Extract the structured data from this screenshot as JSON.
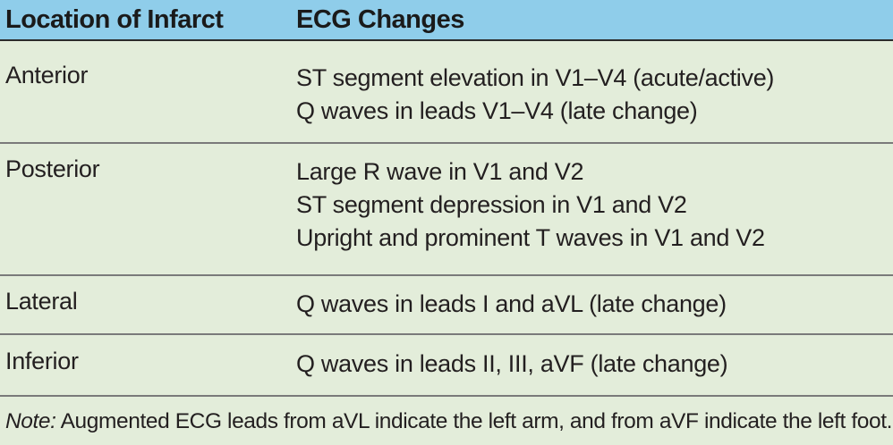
{
  "table": {
    "headers": [
      "Location of Infarct",
      "ECG Changes"
    ],
    "rows": [
      {
        "location": "Anterior",
        "changes": [
          "ST segment elevation in V1–V4 (acute/active)",
          "Q waves in leads V1–V4 (late change)"
        ]
      },
      {
        "location": "Posterior",
        "changes": [
          "Large R wave in V1 and V2",
          "ST segment depression in V1 and V2",
          "Upright and prominent T waves in V1 and V2"
        ]
      },
      {
        "location": "Lateral",
        "changes": [
          "Q waves in leads I and aVL (late change)"
        ]
      },
      {
        "location": "Inferior",
        "changes": [
          "Q waves in leads II, III, aVF (late change)"
        ]
      }
    ]
  },
  "note": {
    "label": "Note:",
    "text": " Augmented ECG leads from aVL indicate the left arm, and from aVF indicate the left foot."
  },
  "colors": {
    "header_bg": "#8fcdea",
    "body_bg": "#e3edda",
    "rule": "#7a7a7a"
  }
}
